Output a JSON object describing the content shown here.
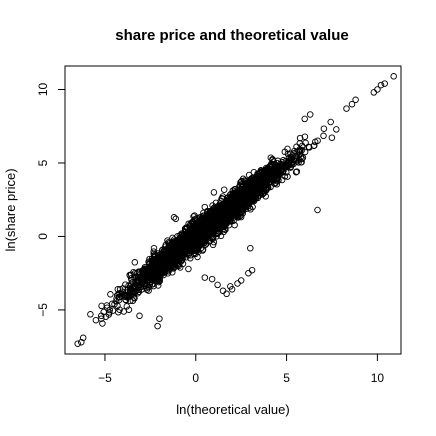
{
  "chart_data": {
    "type": "scatter",
    "title": "share price and theoretical value",
    "xlabel": "ln(theoretical value)",
    "ylabel": "ln(share price)",
    "xlim": [
      -7.2,
      11.3
    ],
    "ylim": [
      -8.0,
      11.6
    ],
    "xticks": [
      -5,
      0,
      5,
      10
    ],
    "yticks": [
      -5,
      0,
      5,
      10
    ],
    "grid": false,
    "legend": "none",
    "marker": "open-circle",
    "marker_color": "#000000",
    "point_cloud": {
      "trend": "ln(share price) ≈ ln(theoretical value)",
      "x_range": [
        -6.5,
        10.9
      ],
      "spread_sd": 0.45,
      "count": 3200
    },
    "points": [
      {
        "x": -6.5,
        "y": -7.3
      },
      {
        "x": -6.3,
        "y": -7.2
      },
      {
        "x": -6.2,
        "y": -6.9
      },
      {
        "x": -5.8,
        "y": -5.3
      },
      {
        "x": -5.5,
        "y": -5.7
      },
      {
        "x": -5.2,
        "y": -5.4
      },
      {
        "x": -4.9,
        "y": -4.7
      },
      {
        "x": -2.1,
        "y": -6.1
      },
      {
        "x": -2.0,
        "y": -5.6
      },
      {
        "x": -3.1,
        "y": -5.4
      },
      {
        "x": -2.3,
        "y": -0.8
      },
      {
        "x": -1.3,
        "y": -1.2
      },
      {
        "x": -1.1,
        "y": 1.2
      },
      {
        "x": -1.2,
        "y": 1.3
      },
      {
        "x": 0.5,
        "y": 2.0
      },
      {
        "x": 1.0,
        "y": 3.0
      },
      {
        "x": 0.5,
        "y": -2.8
      },
      {
        "x": 0.9,
        "y": -2.9
      },
      {
        "x": 1.2,
        "y": -3.3
      },
      {
        "x": 1.7,
        "y": -3.9
      },
      {
        "x": 1.5,
        "y": -3.7
      },
      {
        "x": 1.9,
        "y": -3.4
      },
      {
        "x": 2.0,
        "y": -3.6
      },
      {
        "x": 2.3,
        "y": -3.2
      },
      {
        "x": 2.5,
        "y": -3.0
      },
      {
        "x": 2.9,
        "y": -2.5
      },
      {
        "x": 3.1,
        "y": -2.3
      },
      {
        "x": 3.0,
        "y": -0.8
      },
      {
        "x": 6.7,
        "y": 1.8
      },
      {
        "x": 6.0,
        "y": 8.0
      },
      {
        "x": 6.3,
        "y": 8.3
      },
      {
        "x": 8.3,
        "y": 8.7
      },
      {
        "x": 8.6,
        "y": 9.0
      },
      {
        "x": 8.8,
        "y": 9.3
      },
      {
        "x": 9.8,
        "y": 9.8
      },
      {
        "x": 10.0,
        "y": 10.0
      },
      {
        "x": 10.2,
        "y": 10.3
      },
      {
        "x": 10.4,
        "y": 10.4
      },
      {
        "x": 10.9,
        "y": 10.9
      }
    ]
  }
}
